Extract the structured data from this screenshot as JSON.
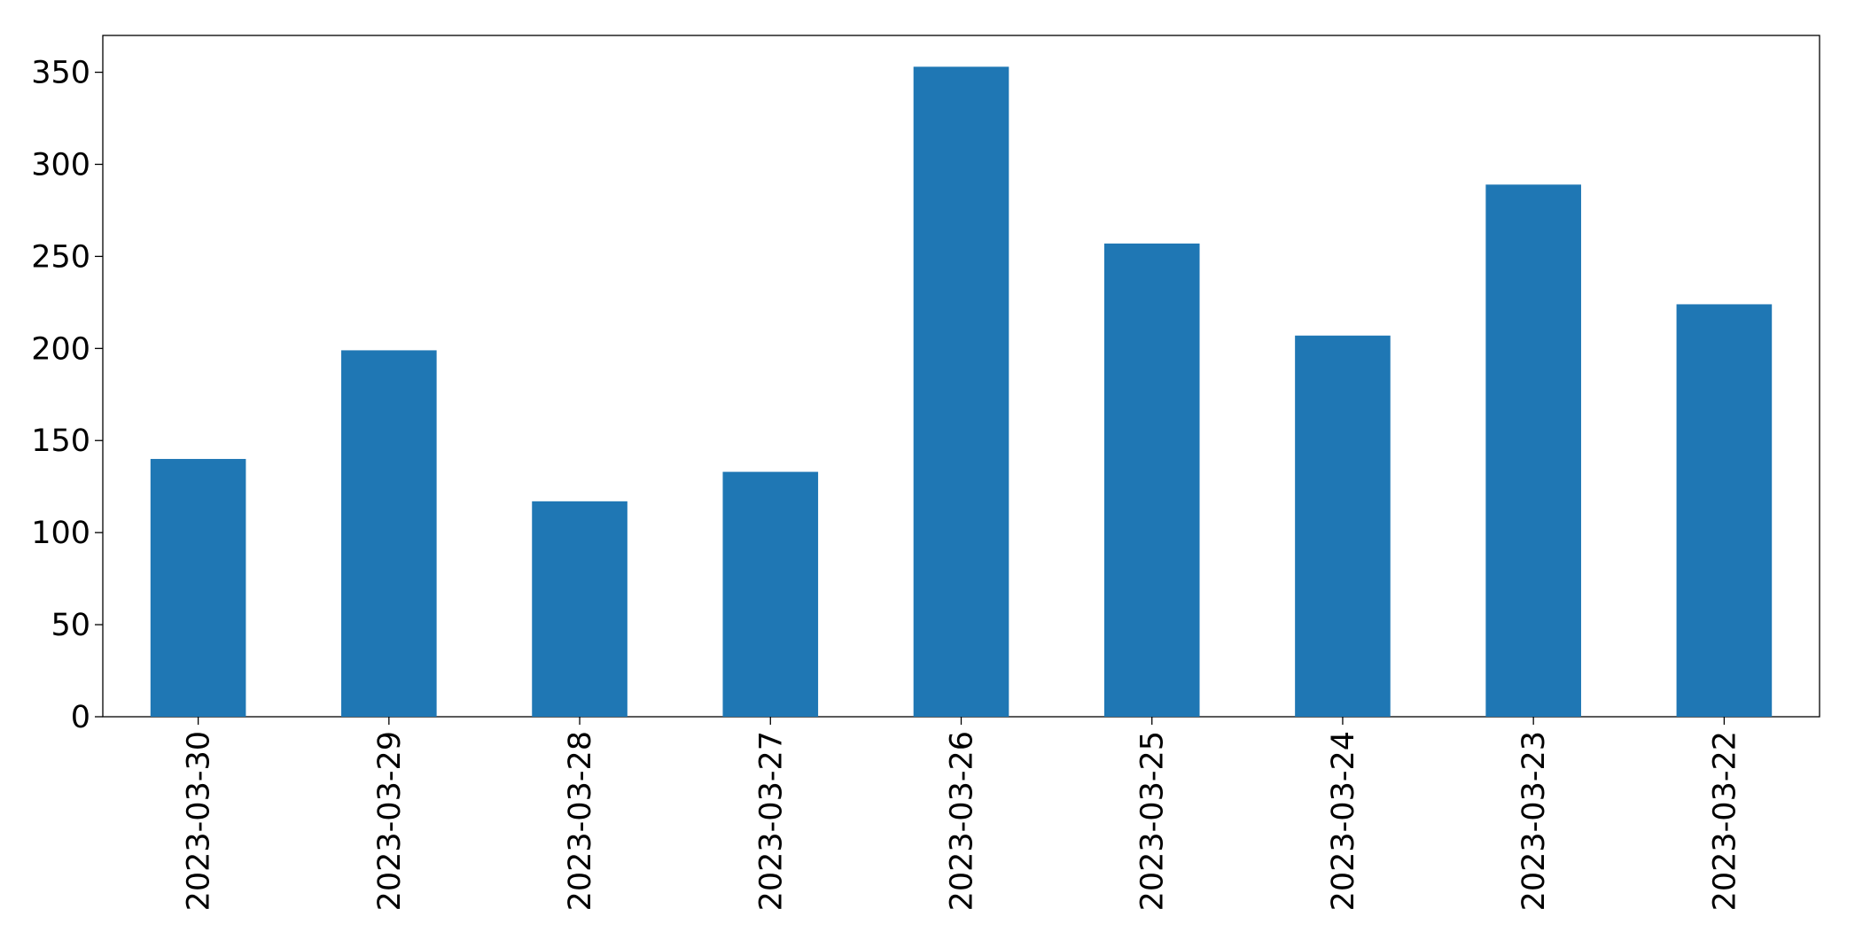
{
  "chart_data": {
    "type": "bar",
    "categories": [
      "2023-03-30",
      "2023-03-29",
      "2023-03-28",
      "2023-03-27",
      "2023-03-26",
      "2023-03-25",
      "2023-03-24",
      "2023-03-23",
      "2023-03-22"
    ],
    "values": [
      140,
      199,
      117,
      133,
      353,
      257,
      207,
      289,
      224
    ],
    "color": "#1f77b4",
    "ylim": [
      0,
      370
    ],
    "yticks": [
      0,
      50,
      100,
      150,
      200,
      250,
      300,
      350
    ],
    "grid": false
  }
}
